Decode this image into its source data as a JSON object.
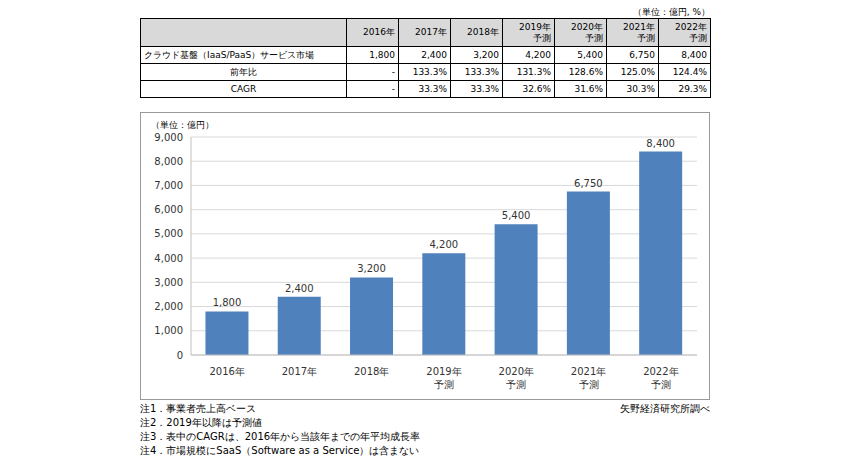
{
  "table": {
    "unit": "（単位：億円, %）",
    "header": [
      "",
      "2016年",
      "2017年",
      "2018年",
      "2019年\n予測",
      "2020年\n予測",
      "2021年\n予測",
      "2022年\n予測"
    ],
    "rows": [
      [
        "クラウド基盤（IaaS/PaaS）サービス市場",
        "1,800",
        "2,400",
        "3,200",
        "4,200",
        "5,400",
        "6,750",
        "8,400"
      ],
      [
        "前年比",
        "-",
        "133.3%",
        "133.3%",
        "131.3%",
        "128.6%",
        "125.0%",
        "124.4%"
      ],
      [
        "CAGR",
        "-",
        "33.3%",
        "33.3%",
        "32.6%",
        "31.6%",
        "30.3%",
        "29.3%"
      ]
    ]
  },
  "chart_data": {
    "type": "bar",
    "subtitle": "（単位：億円）",
    "categories": [
      "2016年",
      "2017年",
      "2018年",
      "2019年\n予測",
      "2020年\n予測",
      "2021年\n予測",
      "2022年\n予測"
    ],
    "values": [
      1800,
      2400,
      3200,
      4200,
      5400,
      6750,
      8400
    ],
    "value_labels": [
      "1,800",
      "2,400",
      "3,200",
      "4,200",
      "5,400",
      "6,750",
      "8,400"
    ],
    "data_labels": true,
    "color": "#4f81bd",
    "ylim": [
      0,
      9000
    ],
    "yticks": [
      0,
      {
        "value": 1000,
        "label": "1,000"
      },
      {
        "value": 2000,
        "label": "2,000"
      },
      {
        "value": 3000,
        "label": "3,000"
      },
      {
        "value": 4000,
        "label": "4,000"
      },
      {
        "value": 5000,
        "label": "5,000"
      },
      {
        "value": 6000,
        "label": "6,000"
      },
      {
        "value": 7000,
        "label": "7,000"
      },
      {
        "value": 8000,
        "label": "8,000"
      },
      {
        "value": 9000,
        "label": "9,000"
      }
    ],
    "grid": true
  },
  "notes": [
    "注1．事業者売上高ベース",
    "注2．2019年以降は予測値",
    "注3．表中のCAGRは、2016年から当該年までの年平均成長率",
    "注4．市場規模にSaaS（Software as a Service）は含まない"
  ],
  "source": "矢野経済研究所調べ"
}
